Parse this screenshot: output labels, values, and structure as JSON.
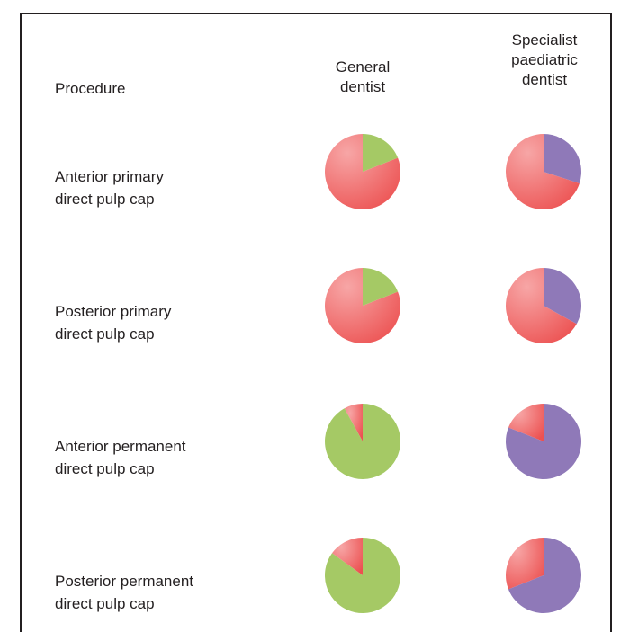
{
  "headers": {
    "procedure": "Procedure",
    "general": [
      "General",
      "dentist"
    ],
    "specialist": [
      "Specialist",
      "paediatric",
      "dentist"
    ]
  },
  "rows": [
    [
      "Anterior primary",
      "direct pulp cap"
    ],
    [
      "Posterior primary",
      "direct pulp cap"
    ],
    [
      "Anterior permanent",
      "direct pulp cap"
    ],
    [
      "Posterior permanent",
      "direct pulp cap"
    ]
  ],
  "colors": {
    "red": "#ee5a5a",
    "red_light": "#f7a6a6",
    "green": "#a5c965",
    "purple": "#8f79b8"
  },
  "chart_data": {
    "type": "pie",
    "columns": [
      "General dentist",
      "Specialist paediatric dentist"
    ],
    "rows": [
      "Anterior primary direct pulp cap",
      "Posterior primary direct pulp cap",
      "Anterior permanent direct pulp cap",
      "Posterior permanent direct pulp cap"
    ],
    "pies": [
      [
        {
          "red": 0.81,
          "green": 0.19
        },
        {
          "red": 0.7,
          "purple": 0.3
        }
      ],
      [
        {
          "red": 0.81,
          "green": 0.19
        },
        {
          "red": 0.67,
          "purple": 0.33
        }
      ],
      [
        {
          "red": 0.08,
          "green": 0.92
        },
        {
          "red": 0.19,
          "purple": 0.81
        }
      ],
      [
        {
          "red": 0.15,
          "green": 0.85
        },
        {
          "red": 0.31,
          "purple": 0.69
        }
      ]
    ]
  }
}
